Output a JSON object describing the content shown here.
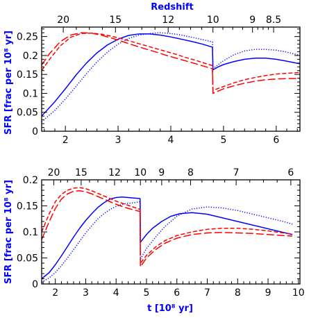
{
  "chart_data": [
    {
      "type": "line",
      "xlabel": "",
      "ylabel": "SFR [frac per 10⁸ yr]",
      "top_axis_label": "Redshift",
      "xlim": [
        1.55,
        6.45
      ],
      "ylim": [
        0,
        0.275
      ],
      "x_ticks": [
        "2",
        "3",
        "4",
        "5",
        "6"
      ],
      "x_tick_values": [
        2,
        3,
        4,
        5,
        6
      ],
      "y_ticks": [
        "0",
        "0.05",
        "0.1",
        "0.15",
        "0.2",
        "0.25"
      ],
      "y_tick_values": [
        0,
        0.05,
        0.1,
        0.15,
        0.2,
        0.25
      ],
      "top_ticks": [
        "20",
        "15",
        "12",
        "10",
        "9",
        "8.5"
      ],
      "top_tick_t": [
        1.96,
        2.95,
        3.95,
        4.8,
        5.55,
        5.95
      ],
      "series": [
        {
          "color": "#0000ff",
          "dash": "solid",
          "x": [
            1.55,
            1.8,
            2.0,
            2.2,
            2.4,
            2.6,
            2.8,
            3.0,
            3.2,
            3.4,
            3.6,
            3.8,
            4.0,
            4.2,
            4.4,
            4.6,
            4.79,
            4.8,
            4.9,
            5.0,
            5.2,
            5.4,
            5.6,
            5.8,
            6.0,
            6.2,
            6.45
          ],
          "y": [
            0.04,
            0.078,
            0.112,
            0.148,
            0.18,
            0.207,
            0.228,
            0.243,
            0.253,
            0.257,
            0.257,
            0.254,
            0.249,
            0.243,
            0.237,
            0.23,
            0.222,
            0.162,
            0.17,
            0.176,
            0.184,
            0.19,
            0.193,
            0.193,
            0.19,
            0.185,
            0.178
          ]
        },
        {
          "color": "#0000ff",
          "dash": "dotted",
          "x": [
            1.55,
            1.8,
            2.0,
            2.2,
            2.4,
            2.6,
            2.8,
            3.0,
            3.2,
            3.4,
            3.6,
            3.8,
            4.0,
            4.2,
            4.4,
            4.6,
            4.79,
            4.8,
            4.9,
            5.0,
            5.2,
            5.4,
            5.6,
            5.8,
            6.0,
            6.2,
            6.45
          ],
          "y": [
            0.025,
            0.055,
            0.085,
            0.118,
            0.152,
            0.183,
            0.209,
            0.23,
            0.245,
            0.254,
            0.258,
            0.26,
            0.258,
            0.254,
            0.248,
            0.242,
            0.236,
            0.165,
            0.176,
            0.186,
            0.202,
            0.212,
            0.216,
            0.216,
            0.214,
            0.209,
            0.2
          ]
        },
        {
          "color": "#ff0000",
          "dash": "short-dash",
          "x": [
            1.55,
            1.7,
            1.9,
            2.1,
            2.3,
            2.5,
            2.7,
            2.9,
            3.1,
            3.3,
            3.5,
            3.7,
            3.9,
            4.1,
            4.3,
            4.5,
            4.79,
            4.8,
            4.9,
            5.0,
            5.2,
            5.4,
            5.6,
            5.8,
            6.0,
            6.2,
            6.45
          ],
          "y": [
            0.16,
            0.19,
            0.225,
            0.248,
            0.258,
            0.259,
            0.256,
            0.25,
            0.243,
            0.235,
            0.227,
            0.219,
            0.211,
            0.203,
            0.194,
            0.186,
            0.173,
            0.108,
            0.113,
            0.118,
            0.128,
            0.136,
            0.142,
            0.147,
            0.151,
            0.153,
            0.155
          ]
        },
        {
          "color": "#ff0000",
          "dash": "long-dash",
          "x": [
            1.55,
            1.7,
            1.9,
            2.1,
            2.3,
            2.5,
            2.7,
            2.9,
            3.1,
            3.3,
            3.5,
            3.7,
            3.9,
            4.1,
            4.3,
            4.5,
            4.79,
            4.8,
            4.9,
            5.0,
            5.2,
            5.4,
            5.6,
            5.8,
            6.0,
            6.2,
            6.45
          ],
          "y": [
            0.175,
            0.205,
            0.236,
            0.254,
            0.26,
            0.259,
            0.253,
            0.245,
            0.236,
            0.227,
            0.218,
            0.21,
            0.201,
            0.193,
            0.185,
            0.177,
            0.165,
            0.1,
            0.106,
            0.112,
            0.12,
            0.127,
            0.132,
            0.136,
            0.138,
            0.139,
            0.139
          ]
        }
      ]
    },
    {
      "type": "line",
      "xlabel": "t [10⁸ yr]",
      "ylabel": "SFR [frac per 10⁸ yr]",
      "xlim": [
        1.55,
        10.05
      ],
      "ylim": [
        0,
        0.2
      ],
      "x_ticks": [
        "2",
        "3",
        "4",
        "5",
        "6",
        "7",
        "8",
        "9",
        "10"
      ],
      "x_tick_values": [
        2,
        3,
        4,
        5,
        6,
        7,
        8,
        9,
        10
      ],
      "y_ticks": [
        "0",
        "0.05",
        "0.1",
        "0.15",
        "0.2"
      ],
      "y_tick_values": [
        0,
        0.05,
        0.1,
        0.15,
        0.2
      ],
      "top_ticks": [
        "20",
        "15",
        "12",
        "10",
        "9",
        "8",
        "7",
        "6"
      ],
      "top_tick_t": [
        1.95,
        2.85,
        3.95,
        4.8,
        5.5,
        6.45,
        7.95,
        9.75
      ],
      "series": [
        {
          "color": "#0000ff",
          "dash": "solid",
          "x": [
            1.55,
            1.8,
            2.0,
            2.2,
            2.4,
            2.6,
            2.8,
            3.0,
            3.2,
            3.4,
            3.6,
            3.8,
            4.0,
            4.2,
            4.4,
            4.6,
            4.79,
            4.8,
            5.0,
            5.2,
            5.5,
            5.8,
            6.1,
            6.5,
            7.0,
            7.5,
            8.0,
            8.5,
            9.0,
            9.5,
            9.8
          ],
          "y": [
            0.01,
            0.022,
            0.037,
            0.054,
            0.072,
            0.09,
            0.107,
            0.122,
            0.135,
            0.147,
            0.156,
            0.163,
            0.166,
            0.167,
            0.166,
            0.165,
            0.164,
            0.08,
            0.095,
            0.107,
            0.12,
            0.13,
            0.135,
            0.137,
            0.134,
            0.127,
            0.12,
            0.113,
            0.106,
            0.099,
            0.095
          ]
        },
        {
          "color": "#0000ff",
          "dash": "dotted",
          "x": [
            1.55,
            1.8,
            2.0,
            2.2,
            2.4,
            2.6,
            2.8,
            3.0,
            3.2,
            3.4,
            3.6,
            3.8,
            4.0,
            4.2,
            4.4,
            4.6,
            4.79,
            4.8,
            5.0,
            5.3,
            5.6,
            6.0,
            6.5,
            7.0,
            7.5,
            8.0,
            8.5,
            9.0,
            9.5,
            9.8
          ],
          "y": [
            0.003,
            0.012,
            0.022,
            0.035,
            0.05,
            0.066,
            0.082,
            0.098,
            0.112,
            0.125,
            0.135,
            0.143,
            0.149,
            0.153,
            0.155,
            0.156,
            0.158,
            0.048,
            0.068,
            0.09,
            0.11,
            0.13,
            0.144,
            0.148,
            0.146,
            0.141,
            0.134,
            0.127,
            0.12,
            0.115
          ]
        },
        {
          "color": "#ff0000",
          "dash": "short-dash",
          "x": [
            1.55,
            1.8,
            2.0,
            2.2,
            2.4,
            2.6,
            2.8,
            3.0,
            3.2,
            3.4,
            3.6,
            3.8,
            4.0,
            4.2,
            4.4,
            4.6,
            4.79,
            4.8,
            5.0,
            5.3,
            5.6,
            6.0,
            6.5,
            7.0,
            7.5,
            8.0,
            8.5,
            9.0,
            9.5,
            9.8
          ],
          "y": [
            0.1,
            0.135,
            0.158,
            0.172,
            0.18,
            0.184,
            0.185,
            0.183,
            0.179,
            0.174,
            0.169,
            0.164,
            0.159,
            0.155,
            0.151,
            0.147,
            0.143,
            0.04,
            0.055,
            0.071,
            0.083,
            0.093,
            0.1,
            0.105,
            0.107,
            0.107,
            0.105,
            0.102,
            0.098,
            0.096
          ]
        },
        {
          "color": "#ff0000",
          "dash": "long-dash",
          "x": [
            1.55,
            1.8,
            2.0,
            2.2,
            2.4,
            2.6,
            2.8,
            3.0,
            3.2,
            3.4,
            3.6,
            3.8,
            4.0,
            4.2,
            4.4,
            4.6,
            4.79,
            4.8,
            5.0,
            5.3,
            5.6,
            6.0,
            6.5,
            7.0,
            7.5,
            8.0,
            8.5,
            9.0,
            9.5,
            9.8
          ],
          "y": [
            0.085,
            0.12,
            0.145,
            0.163,
            0.173,
            0.178,
            0.179,
            0.177,
            0.173,
            0.168,
            0.163,
            0.158,
            0.153,
            0.149,
            0.145,
            0.142,
            0.139,
            0.033,
            0.05,
            0.066,
            0.078,
            0.088,
            0.095,
            0.098,
            0.099,
            0.098,
            0.097,
            0.095,
            0.093,
            0.092
          ]
        }
      ]
    }
  ]
}
